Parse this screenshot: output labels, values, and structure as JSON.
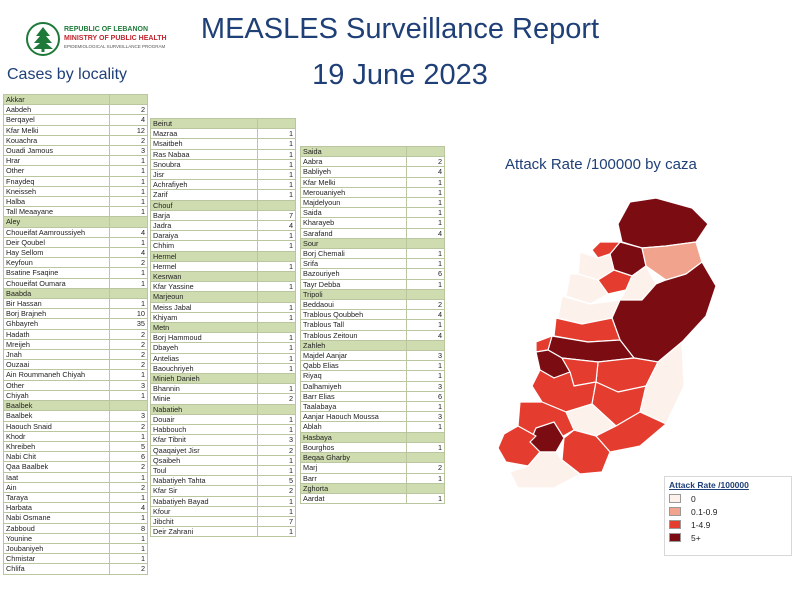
{
  "header": {
    "logo_line1": "REPUBLIC OF LEBANON",
    "logo_line2": "MINISTRY OF PUBLIC HEALTH",
    "logo_line3": "EPIDEMIOLOGICAL SURVEILLANCE PROGRAM",
    "title": "MEASLES Surveillance Report",
    "date": "19 June 2023",
    "subtitle": "Cases by locality"
  },
  "columns": [
    [
      {
        "name": "Akkar",
        "rows": [
          [
            "Aabdeh",
            "2"
          ],
          [
            "Berqayel",
            "4"
          ],
          [
            "Kfar Melki",
            "12"
          ],
          [
            "Kouachra",
            "2"
          ],
          [
            "Ouadi Jamous",
            "3"
          ],
          [
            "Hrar",
            "1"
          ],
          [
            "Other",
            "1"
          ],
          [
            "Fnaydeq",
            "1"
          ],
          [
            "Kneisseh",
            "1"
          ],
          [
            "Halba",
            "1"
          ],
          [
            "Tall Meaayane",
            "1"
          ]
        ]
      },
      {
        "name": "Aley",
        "rows": [
          [
            "Choueifat Aamroussiyeh",
            "4"
          ],
          [
            "Deir Qoubel",
            "1"
          ],
          [
            "Hay Sellom",
            "4"
          ],
          [
            "Keyfoun",
            "2"
          ],
          [
            "Bsatine Fsaqine",
            "1"
          ],
          [
            "Choueifat Oumara",
            "1"
          ]
        ]
      },
      {
        "name": "Baabda",
        "rows": [
          [
            "Bir Hassan",
            "1"
          ],
          [
            "Borj Brajneh",
            "10"
          ],
          [
            "Ghbayreh",
            "35"
          ],
          [
            "Hadath",
            "2"
          ],
          [
            "Mreijeh",
            "2"
          ],
          [
            "Jnah",
            "2"
          ],
          [
            "Ouzaai",
            "2"
          ],
          [
            "Ain Roummaneh Chiyah",
            "1"
          ],
          [
            "Other",
            "3"
          ],
          [
            "Chiyah",
            "1"
          ]
        ]
      },
      {
        "name": "Baalbek",
        "rows": [
          [
            "Baalbek",
            "3"
          ],
          [
            "Haouch Snaid",
            "2"
          ],
          [
            "Khodr",
            "1"
          ],
          [
            "Khreibeh",
            "5"
          ],
          [
            "Nabi Chit",
            "6"
          ],
          [
            "Qaa Baalbek",
            "2"
          ],
          [
            "Iaat",
            "1"
          ],
          [
            "Ain",
            "2"
          ],
          [
            "Taraya",
            "1"
          ],
          [
            "Harbata",
            "4"
          ],
          [
            "Nabi Osmane",
            "1"
          ],
          [
            "Zabboud",
            "8"
          ],
          [
            "Younine",
            "1"
          ],
          [
            "Joubaniyeh",
            "1"
          ],
          [
            "Chmistar",
            "1"
          ],
          [
            "Chlifa",
            "2"
          ]
        ]
      }
    ],
    [
      {
        "name": "Beirut",
        "rows": [
          [
            "Mazraa",
            "1"
          ],
          [
            "Msaitbeh",
            "1"
          ],
          [
            "Ras Nabaa",
            "1"
          ],
          [
            "Snoubra",
            "1"
          ],
          [
            "Jisr",
            "1"
          ],
          [
            "Achrafiyeh",
            "1"
          ],
          [
            "Zarif",
            "1"
          ]
        ]
      },
      {
        "name": "Chouf",
        "rows": [
          [
            "Barja",
            "7"
          ],
          [
            "Jadra",
            "4"
          ],
          [
            "Daraiya",
            "1"
          ],
          [
            "Chhim",
            "1"
          ]
        ]
      },
      {
        "name": "Hermel",
        "rows": [
          [
            "Hermel",
            "1"
          ]
        ]
      },
      {
        "name": "Kesrwan",
        "rows": [
          [
            "Kfar Yassine",
            "1"
          ]
        ]
      },
      {
        "name": "Marjeoun",
        "rows": [
          [
            "Meiss Jabal",
            "1"
          ],
          [
            "Khiyam",
            "1"
          ]
        ]
      },
      {
        "name": "Metn",
        "rows": [
          [
            "Borj Hammoud",
            "1"
          ],
          [
            "Dbayeh",
            "1"
          ],
          [
            "Antelias",
            "1"
          ],
          [
            "Baouchriyeh",
            "1"
          ]
        ]
      },
      {
        "name": "Minieh Danieh",
        "rows": [
          [
            "Bhannin",
            "1"
          ],
          [
            "Minie",
            "2"
          ]
        ]
      },
      {
        "name": "Nabatieh",
        "rows": [
          [
            "Douair",
            "1"
          ],
          [
            "Habbouch",
            "1"
          ],
          [
            "Kfar Tibnit",
            "3"
          ],
          [
            "Qaaqaiyet Jisr",
            "2"
          ],
          [
            "Qsaibeh",
            "1"
          ],
          [
            "Toul",
            "1"
          ],
          [
            "Nabatiyeh Tahta",
            "5"
          ],
          [
            "Kfar Sir",
            "2"
          ],
          [
            "Nabatiyeh Bayad",
            "1"
          ],
          [
            "Kfour",
            "1"
          ],
          [
            "Jibchit",
            "7"
          ],
          [
            "Deir Zahrani",
            "1"
          ]
        ]
      }
    ],
    [
      {
        "name": "Saida",
        "rows": [
          [
            "Aabra",
            "2"
          ],
          [
            "Babliyeh",
            "4"
          ],
          [
            "Kfar Melki",
            "1"
          ],
          [
            "Merouaniyeh",
            "1"
          ],
          [
            "Majdelyoun",
            "1"
          ],
          [
            "Saida",
            "1"
          ],
          [
            "Kharayeb",
            "1"
          ],
          [
            "Sarafand",
            "4"
          ]
        ]
      },
      {
        "name": "Sour",
        "rows": [
          [
            "Borj Chemali",
            "1"
          ],
          [
            "Srifa",
            "1"
          ],
          [
            "Bazouriyeh",
            "6"
          ],
          [
            "Tayr Debba",
            "1"
          ]
        ]
      },
      {
        "name": "Tripoli",
        "rows": [
          [
            "Beddaoui",
            "2"
          ],
          [
            "Trablous Qoubbeh",
            "4"
          ],
          [
            "Trablous Tall",
            "1"
          ],
          [
            "Trablous Zeitoun",
            "4"
          ]
        ]
      },
      {
        "name": "Zahleh",
        "rows": [
          [
            "Majdel Aanjar",
            "3"
          ],
          [
            "Qabb Elias",
            "1"
          ],
          [
            "Riyaq",
            "1"
          ],
          [
            "Dalhamiyeh",
            "3"
          ],
          [
            "Barr Elias",
            "6"
          ],
          [
            "Taalabaya",
            "1"
          ],
          [
            "Aanjar Haouch Moussa",
            "3"
          ],
          [
            "Ablah",
            "1"
          ]
        ]
      },
      {
        "name": "Hasbaya",
        "rows": [
          [
            "Bourghos",
            "1"
          ]
        ]
      },
      {
        "name": "Beqaa Gharby",
        "rows": [
          [
            "Marj",
            "2"
          ],
          [
            "Barr",
            "1"
          ]
        ]
      },
      {
        "name": "Zghorta",
        "rows": [
          [
            "Aardat",
            "1"
          ]
        ]
      }
    ]
  ],
  "map": {
    "title": "Attack Rate /100000 by caza",
    "colors": {
      "zero": "#fdf1ec",
      "low": "#f2a38e",
      "mid": "#e43c2f",
      "high": "#7b0c12",
      "border": "#ffffff"
    }
  },
  "legend": {
    "title": "Attack Rate /100000",
    "items": [
      {
        "label": "0",
        "color": "#fdf1ec"
      },
      {
        "label": "0.1-0.9",
        "color": "#f2a38e"
      },
      {
        "label": "1-4.9",
        "color": "#e43c2f"
      },
      {
        "label": "5+",
        "color": "#7b0c12"
      }
    ]
  }
}
